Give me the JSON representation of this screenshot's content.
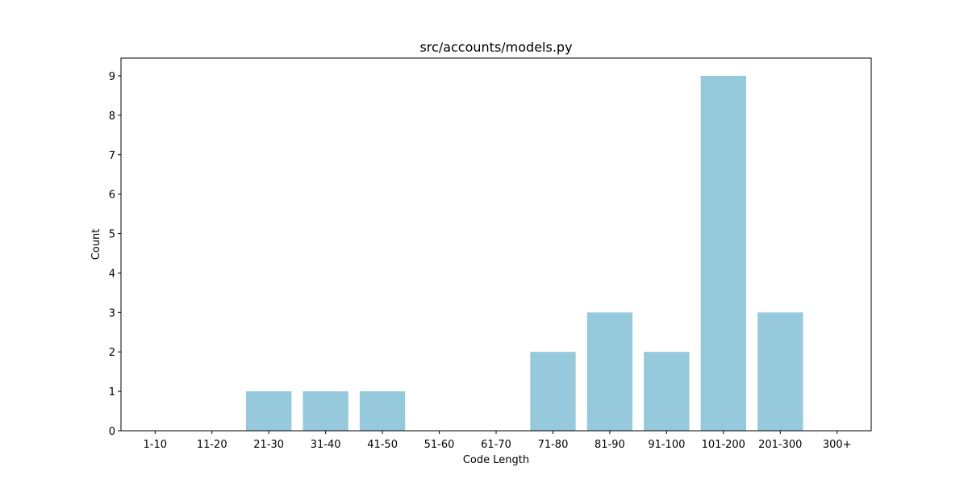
{
  "chart_data": {
    "type": "bar",
    "title": "src/accounts/models.py",
    "xlabel": "Code Length",
    "ylabel": "Count",
    "categories": [
      "1-10",
      "11-20",
      "21-30",
      "31-40",
      "41-50",
      "51-60",
      "61-70",
      "71-80",
      "81-90",
      "91-100",
      "101-200",
      "201-300",
      "300+"
    ],
    "values": [
      0,
      0,
      1,
      1,
      1,
      0,
      0,
      2,
      3,
      2,
      9,
      3,
      0
    ],
    "ylim": [
      0,
      9.45
    ],
    "yticks": [
      0,
      1,
      2,
      3,
      4,
      5,
      6,
      7,
      8,
      9
    ],
    "grid": false,
    "legend": "none",
    "bar_color": "#96c9dc"
  }
}
